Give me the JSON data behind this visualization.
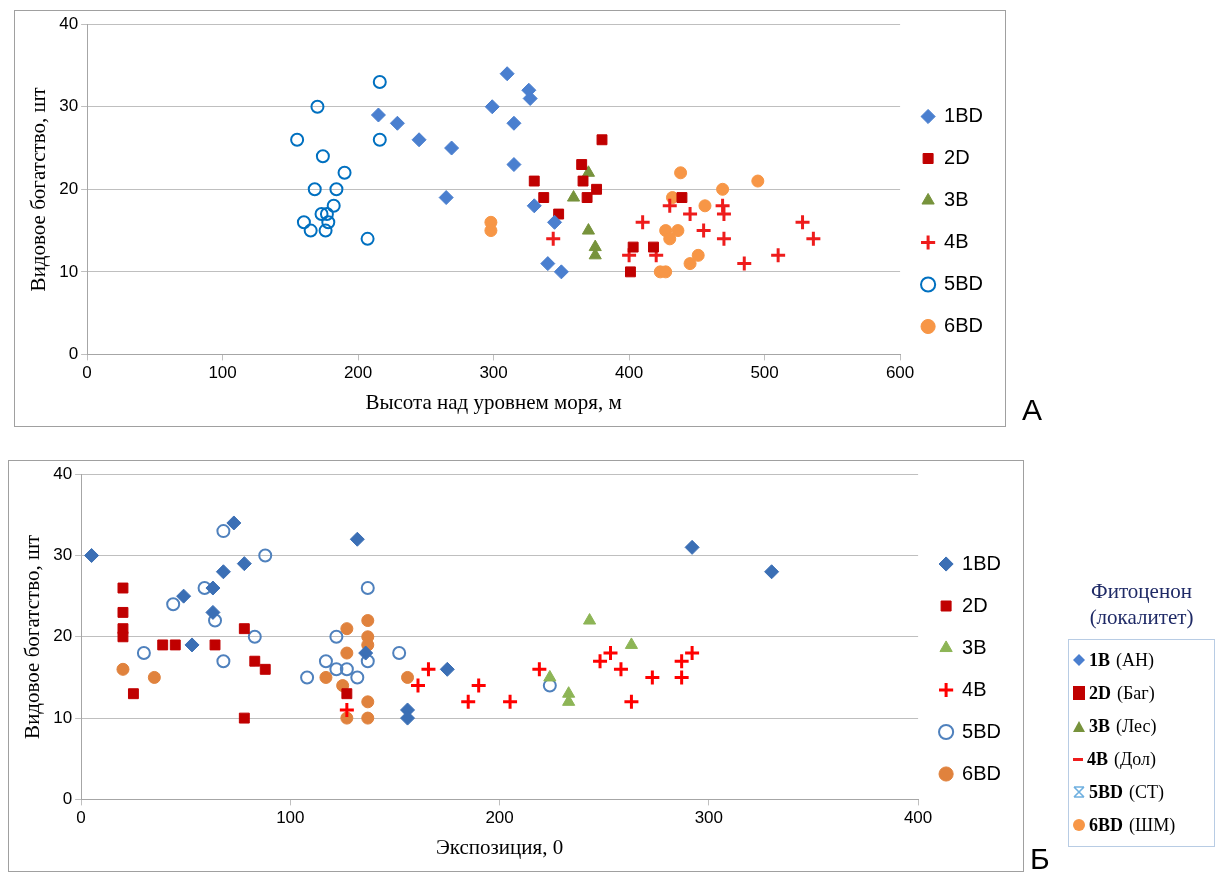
{
  "chart_data": [
    {
      "type": "scatter",
      "xlabel": "Высота над уровнем моря, м",
      "ylabel": "Видовое богатство, шт",
      "xlim": [
        0,
        600
      ],
      "xticks": [
        0,
        100,
        200,
        300,
        400,
        500,
        600
      ],
      "ylim": [
        0,
        40
      ],
      "yticks": [
        0,
        10,
        20,
        30,
        40
      ],
      "grid": "y",
      "legend": "right",
      "annotations": [
        "А"
      ],
      "series": [
        {
          "name": "1BD",
          "color": "#4a7fcf",
          "marker": "diamond",
          "x": [
            310,
            326,
            327,
            299,
            215,
            229,
            315,
            245,
            269,
            315,
            265,
            330,
            345,
            340,
            350
          ],
          "values": [
            34,
            32,
            31,
            30,
            29,
            28,
            28,
            26,
            25,
            23,
            19,
            18,
            16,
            11,
            10
          ]
        },
        {
          "name": "2D",
          "color": "#c00000",
          "marker": "square",
          "x": [
            380,
            365,
            330,
            366,
            376,
            369,
            337,
            348,
            439,
            403,
            418,
            401
          ],
          "values": [
            26,
            23,
            21,
            21,
            20,
            19,
            19,
            17,
            19,
            13,
            13,
            10
          ]
        },
        {
          "name": "3B",
          "color": "#77933c",
          "marker": "triangle",
          "x": [
            370,
            359,
            370,
            375,
            375
          ],
          "values": [
            22,
            19,
            15,
            13,
            12
          ]
        },
        {
          "name": "4B",
          "color": "#ee1c1c",
          "marker": "cross",
          "x": [
            344,
            410,
            430,
            445,
            469,
            470,
            455,
            470,
            400,
            420,
            485,
            510,
            528,
            536
          ],
          "values": [
            14,
            16,
            18,
            17,
            18,
            17,
            15,
            14,
            12,
            12,
            11,
            12,
            16,
            14
          ]
        },
        {
          "name": "5BD",
          "color": "#0070c0",
          "marker": "circle",
          "x": [
            170,
            155,
            174,
            190,
            168,
            184,
            182,
            173,
            177,
            178,
            160,
            165,
            176,
            207,
            216,
            216
          ],
          "values": [
            30,
            26,
            24,
            22,
            20,
            20,
            18,
            17,
            17,
            16,
            16,
            15,
            15,
            14,
            33,
            26
          ]
        },
        {
          "name": "6BD",
          "color": "#f79646",
          "marker": "circle",
          "x": [
            298,
            298,
            438,
            469,
            495,
            432,
            456,
            427,
            436,
            430,
            451,
            445,
            423,
            427
          ],
          "values": [
            16,
            15,
            22,
            20,
            21,
            19,
            18,
            15,
            15,
            14,
            12,
            11,
            10,
            10
          ]
        }
      ]
    },
    {
      "type": "scatter",
      "xlabel": "Экспозиция, 0",
      "ylabel": "Видовое богатство, шт",
      "xlim": [
        0,
        400
      ],
      "xticks": [
        0,
        100,
        200,
        300,
        400
      ],
      "ylim": [
        0,
        40
      ],
      "yticks": [
        0,
        10,
        20,
        30,
        40
      ],
      "grid": "y",
      "legend": "right",
      "annotations": [
        "Б"
      ],
      "series": [
        {
          "name": "1BD",
          "color": "#3b6fb5",
          "marker": "diamond",
          "x": [
            5,
            73,
            132,
            78,
            68,
            63,
            49,
            63,
            53,
            136,
            292,
            330,
            175,
            156,
            156
          ],
          "values": [
            30,
            34,
            32,
            29,
            28,
            26,
            25,
            23,
            19,
            18,
            31,
            28,
            16,
            11,
            10
          ]
        },
        {
          "name": "2D",
          "color": "#c00000",
          "marker": "square",
          "x": [
            20,
            20,
            20,
            20,
            39,
            45,
            64,
            78,
            83,
            88,
            25,
            78,
            127
          ],
          "values": [
            26,
            23,
            21,
            20,
            19,
            19,
            19,
            21,
            17,
            16,
            13,
            10,
            13
          ]
        },
        {
          "name": "3B",
          "color": "#8db556",
          "marker": "triangle",
          "x": [
            243,
            263,
            224,
            233,
            233
          ],
          "values": [
            22,
            19,
            15,
            13,
            12
          ]
        },
        {
          "name": "4B",
          "color": "#ff0000",
          "marker": "cross",
          "x": [
            127,
            166,
            161,
            190,
            185,
            205,
            219,
            253,
            248,
            258,
            273,
            263,
            287,
            292,
            287
          ],
          "values": [
            11,
            16,
            14,
            14,
            12,
            12,
            16,
            18,
            17,
            16,
            15,
            12,
            17,
            18,
            15
          ]
        },
        {
          "name": "5BD",
          "color": "#4f81bd",
          "marker": "circle",
          "x": [
            68,
            88,
            59,
            44,
            64,
            83,
            30,
            68,
            137,
            122,
            117,
            122,
            127,
            137,
            132,
            108,
            152,
            224
          ],
          "values": [
            33,
            30,
            26,
            24,
            22,
            20,
            18,
            17,
            26,
            20,
            17,
            16,
            16,
            17,
            15,
            15,
            18,
            14
          ]
        },
        {
          "name": "6BD",
          "color": "#e0823d",
          "marker": "circle",
          "x": [
            20,
            35,
            127,
            137,
            137,
            137,
            127,
            117,
            125,
            137,
            127,
            137,
            156
          ],
          "values": [
            16,
            15,
            21,
            22,
            20,
            19,
            18,
            15,
            14,
            12,
            10,
            10,
            15
          ]
        }
      ]
    },
    {
      "type": "other",
      "title": "Фитоценон (локалитет)",
      "annotations": [
        "1B (АН)",
        "2D (Баг)",
        "3B (Лес)",
        "4B (Дол)",
        "5BD (СТ)",
        "6BD (ШМ)"
      ]
    }
  ]
}
